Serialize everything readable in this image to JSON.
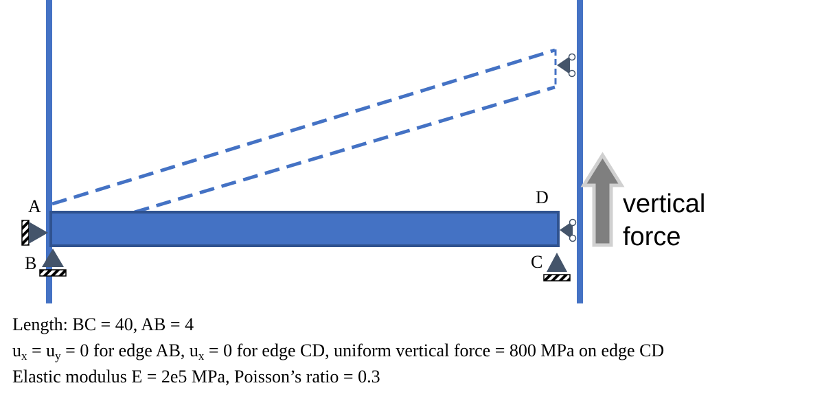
{
  "labels": {
    "corner_a": "A",
    "corner_b": "B",
    "corner_c": "C",
    "corner_d": "D",
    "force_line1": "vertical",
    "force_line2": "force"
  },
  "caption": {
    "line1": "Length: BC = 40, AB = 4",
    "line2": {
      "p1": "u",
      "s1": "x",
      "p2": " = u",
      "s2": "y",
      "p3": " = 0 for edge AB, u",
      "s3": "x",
      "p4": " = 0 for edge CD, uniform vertical force = 800 MPa on edge CD"
    },
    "line3": "Elastic modulus E = 2e5 MPa, Poisson’s ratio = 0.3"
  },
  "colors": {
    "beam": "#4472C4",
    "beam_border": "#2F528F",
    "wall": "#4472C4",
    "support": "#44546A",
    "arrow_fill": "#7F7F7F",
    "arrow_outline": "#D0D0D0"
  }
}
